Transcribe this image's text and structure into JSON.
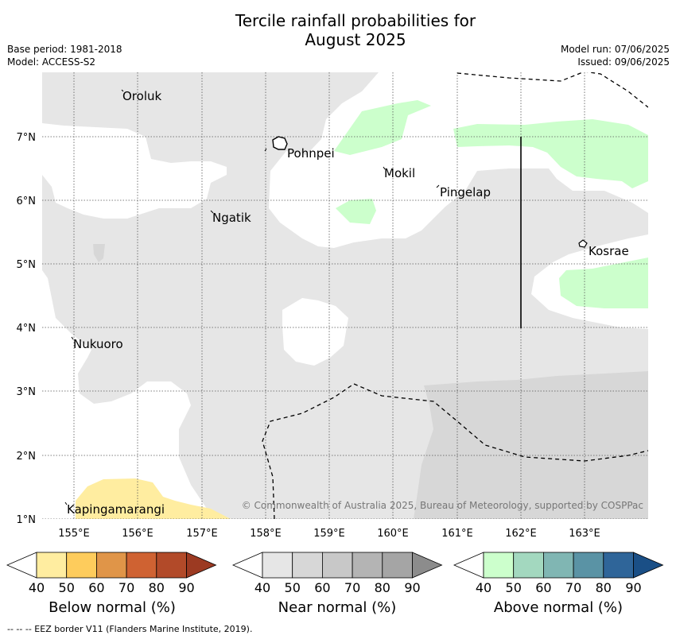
{
  "title_line1": "Tercile rainfall probabilities for",
  "title_line2": "August 2025",
  "meta": {
    "base_period": "Base period: 1981-2018",
    "model": "Model: ACCESS-S2",
    "model_run": "Model run: 07/06/2025",
    "issued": "Issued: 09/06/2025"
  },
  "map": {
    "lon_labels": [
      "155°E",
      "156°E",
      "157°E",
      "158°E",
      "159°E",
      "160°E",
      "161°E",
      "162°E",
      "163°E"
    ],
    "lat_labels": [
      "7°N",
      "6°N",
      "5°N",
      "4°N",
      "3°N",
      "2°N",
      "1°N"
    ],
    "places": [
      "Oroluk",
      "Pohnpei",
      "Mokil",
      "Pingelap",
      "Ngatik",
      "Kosrae",
      "Nukuoro",
      "Kapingamarangi"
    ],
    "credit": "© Commonwealth of Australia 2025, Bureau of Meteorology, supported by COSPPac",
    "colors": {
      "near_normal_40": "#e6e6e6",
      "near_normal_50": "#d7d7d7",
      "above_normal_40": "#ccffcc",
      "below_normal_40": "#ffeda0"
    }
  },
  "colorbars": [
    {
      "name": "Below normal (%)",
      "labels": [
        "40",
        "50",
        "60",
        "70",
        "80",
        "90"
      ],
      "colors": [
        "#ffeda0",
        "#fecc5c",
        "#e09548",
        "#cf6232",
        "#b24a29",
        "#9c3a22"
      ]
    },
    {
      "name": "Near normal (%)",
      "labels": [
        "40",
        "50",
        "60",
        "70",
        "80",
        "90"
      ],
      "colors": [
        "#e6e6e6",
        "#d7d7d7",
        "#c8c8c8",
        "#b4b4b4",
        "#a5a5a5",
        "#8c8c8c"
      ]
    },
    {
      "name": "Above normal (%)",
      "labels": [
        "40",
        "50",
        "60",
        "70",
        "80",
        "90"
      ],
      "colors": [
        "#ccffcc",
        "#a3d8bf",
        "#80b6b3",
        "#5a93a5",
        "#2f6599",
        "#1a4f86"
      ]
    }
  ],
  "footnote": "--  --  -- EEZ border V11 (Flanders Marine Institute, 2019)."
}
